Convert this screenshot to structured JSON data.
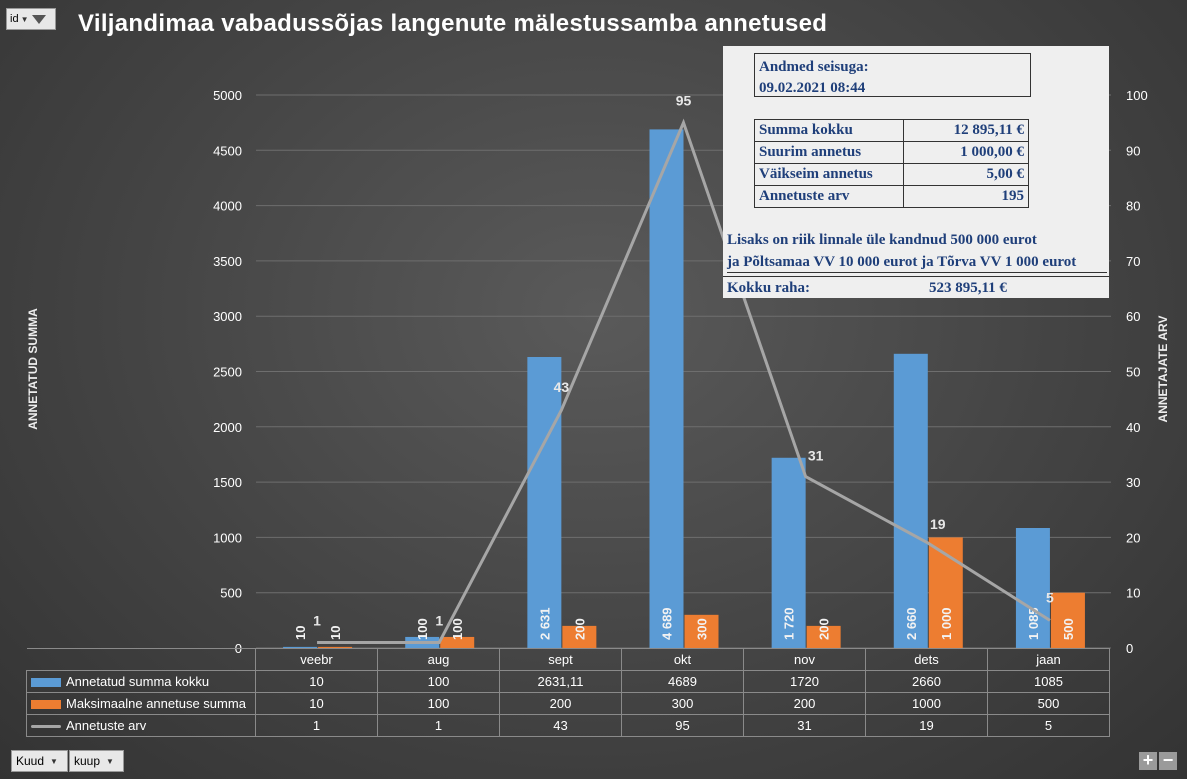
{
  "filter_button": {
    "label": "id"
  },
  "title": "Viljandimaa vabadussõjas langenute mälestussamba annetused",
  "left_axis_label": "ANNETATUD SUMMA",
  "right_axis_label": "ANNETAJATE ARV",
  "info": {
    "asof_label": "Andmed seisuga:",
    "asof_value": "09.02.2021 08:44",
    "stats": [
      {
        "key": "Summa kokku",
        "value": "12 895,11 €"
      },
      {
        "key": "Suurim annetus",
        "value": "1 000,00 €"
      },
      {
        "key": "Väikseim annetus",
        "value": "5,00 €"
      },
      {
        "key": "Annetuste arv",
        "value": "195"
      }
    ],
    "extra_line1": "Lisaks on riik linnale üle kandnud 500 000 eurot",
    "extra_line2": "ja Põltsamaa VV 10 000 eurot ja Tõrva VV 1 000 eurot",
    "total_label": "Kokku raha:",
    "total_value": "523 895,11 €"
  },
  "colors": {
    "series_blue": "#5b9bd5",
    "series_orange": "#ed7d31",
    "series_line": "#a6a6a6",
    "text_blue": "#1f3f7a"
  },
  "chart_data": {
    "type": "bar",
    "categories": [
      "veebr",
      "aug",
      "sept",
      "okt",
      "nov",
      "dets",
      "jaan"
    ],
    "series": [
      {
        "name": "Annetatud summa kokku",
        "axis": "left",
        "values": [
          10,
          100,
          2631.11,
          4689,
          1720,
          2660,
          1085
        ],
        "table_values": [
          "10",
          "100",
          "2631,11",
          "4689",
          "1720",
          "2660",
          "1085"
        ],
        "data_labels": [
          "10",
          "100",
          "2 631",
          "4 689",
          "1 720",
          "2 660",
          "1 085"
        ]
      },
      {
        "name": "Maksimaalne annetuse summa",
        "axis": "left",
        "values": [
          10,
          100,
          200,
          300,
          200,
          1000,
          500
        ],
        "table_values": [
          "10",
          "100",
          "200",
          "300",
          "200",
          "1000",
          "500"
        ],
        "data_labels": [
          "10",
          "100",
          "200",
          "300",
          "200",
          "1 000",
          "500"
        ]
      },
      {
        "name": "Annetuste arv",
        "type": "line",
        "axis": "right",
        "values": [
          1,
          1,
          43,
          95,
          31,
          19,
          5
        ],
        "table_values": [
          "1",
          "1",
          "43",
          "95",
          "31",
          "19",
          "5"
        ],
        "data_labels": [
          "1",
          "1",
          "43",
          "95",
          "31",
          "19",
          "5"
        ]
      }
    ],
    "y_left": {
      "min": 0,
      "max": 5000,
      "ticks": [
        "0",
        "500",
        "1000",
        "1500",
        "2000",
        "2500",
        "3000",
        "3500",
        "4000",
        "4500",
        "5000"
      ]
    },
    "y_right": {
      "min": 0,
      "max": 100,
      "ticks": [
        "0",
        "10",
        "20",
        "30",
        "40",
        "50",
        "60",
        "70",
        "80",
        "90",
        "100"
      ]
    },
    "grid": true,
    "legend": "data table"
  },
  "field_buttons": [
    "Kuud",
    "kuup"
  ],
  "zoom": {
    "plus": "+",
    "minus": "−"
  }
}
